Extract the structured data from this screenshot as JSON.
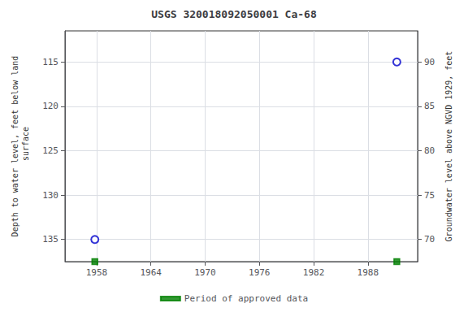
{
  "chart_data": {
    "type": "scatter",
    "title": "USGS 320018092050001 Ca-68",
    "y_label": "Depth to water level, feet below land\n surface",
    "y2_label": "Groundwater level above NGVD 1929, feet",
    "xlim": [
      1954.5,
      1993.5
    ],
    "xticks": [
      1958,
      1964,
      1970,
      1976,
      1982,
      1988
    ],
    "ylim": [
      137.5,
      111.5
    ],
    "yticks": [
      115,
      120,
      125,
      130,
      135
    ],
    "y2lim": [
      67.5,
      93.5
    ],
    "y2ticks": [
      70,
      75,
      80,
      85,
      90
    ],
    "grid": true,
    "legend": "bottom",
    "series": [
      {
        "color": "#0000cc",
        "marker": "circle",
        "x": [
          1957.8,
          1991.2
        ],
        "values": [
          135.0,
          115.0
        ]
      },
      {
        "name": "Period of approved data",
        "color": "#008000",
        "marker": "square",
        "x": [
          1957.8,
          1991.2
        ],
        "values": [
          137.5,
          137.5
        ]
      }
    ]
  }
}
